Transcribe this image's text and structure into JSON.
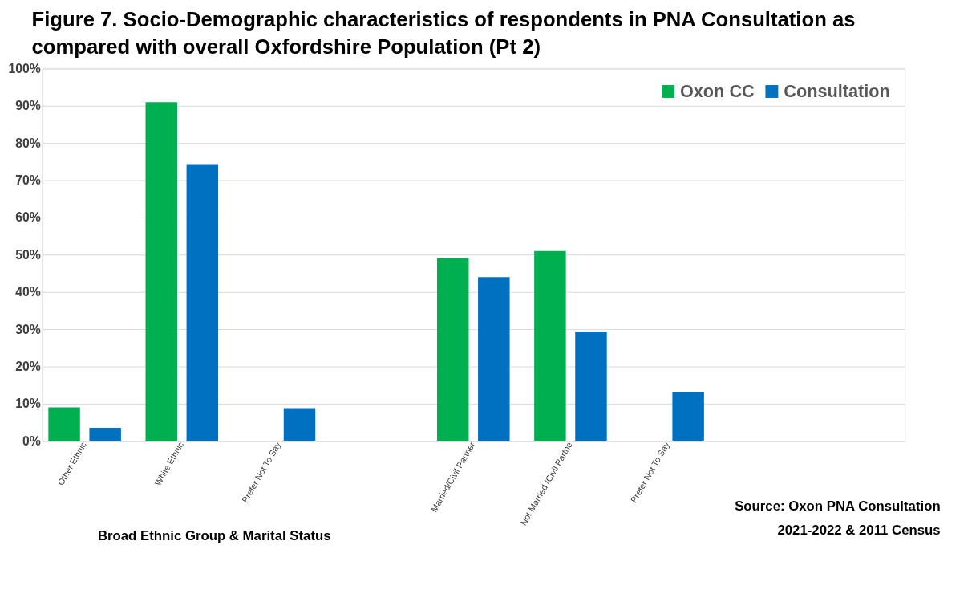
{
  "chart_data": {
    "type": "bar",
    "title": "Figure 7. Socio-Demographic characteristics of respondents in PNA Consultation as\ncompared with overall Oxfordshire Population (Pt 2)",
    "xlabel": "Broad Ethnic Group & Marital Status",
    "categories": [
      "Other Ethnic",
      "White Ethnic",
      "Prefer Not To Say",
      null,
      "Married/Civil Partner",
      "Not Married /Civil Partne",
      "Prefer Not To Say",
      null,
      null
    ],
    "series": [
      {
        "name": "Oxon CC",
        "color": "#00b050",
        "values": [
          9,
          91,
          null,
          null,
          49,
          51,
          null,
          null,
          null
        ]
      },
      {
        "name": "Consultation",
        "color": "#0070c0",
        "values": [
          3.5,
          74.3,
          8.8,
          null,
          44,
          29.3,
          13.2,
          null,
          null
        ]
      }
    ],
    "ylim": [
      0,
      100
    ],
    "yticks": [
      {
        "value": 0,
        "label": "0%"
      },
      {
        "value": 10,
        "label": "10%"
      },
      {
        "value": 20,
        "label": "20%"
      },
      {
        "value": 30,
        "label": "30%"
      },
      {
        "value": 40,
        "label": "40%"
      },
      {
        "value": 50,
        "label": "50%"
      },
      {
        "value": 60,
        "label": "60%"
      },
      {
        "value": 70,
        "label": "70%"
      },
      {
        "value": 80,
        "label": "80%"
      },
      {
        "value": 90,
        "label": "90%"
      },
      {
        "value": 100,
        "label": "100%"
      }
    ],
    "grid": "y",
    "legend": "top right",
    "annotations": [
      "Source: Oxon PNA Consultation\n 2021-2022  & 2011 Census"
    ]
  }
}
